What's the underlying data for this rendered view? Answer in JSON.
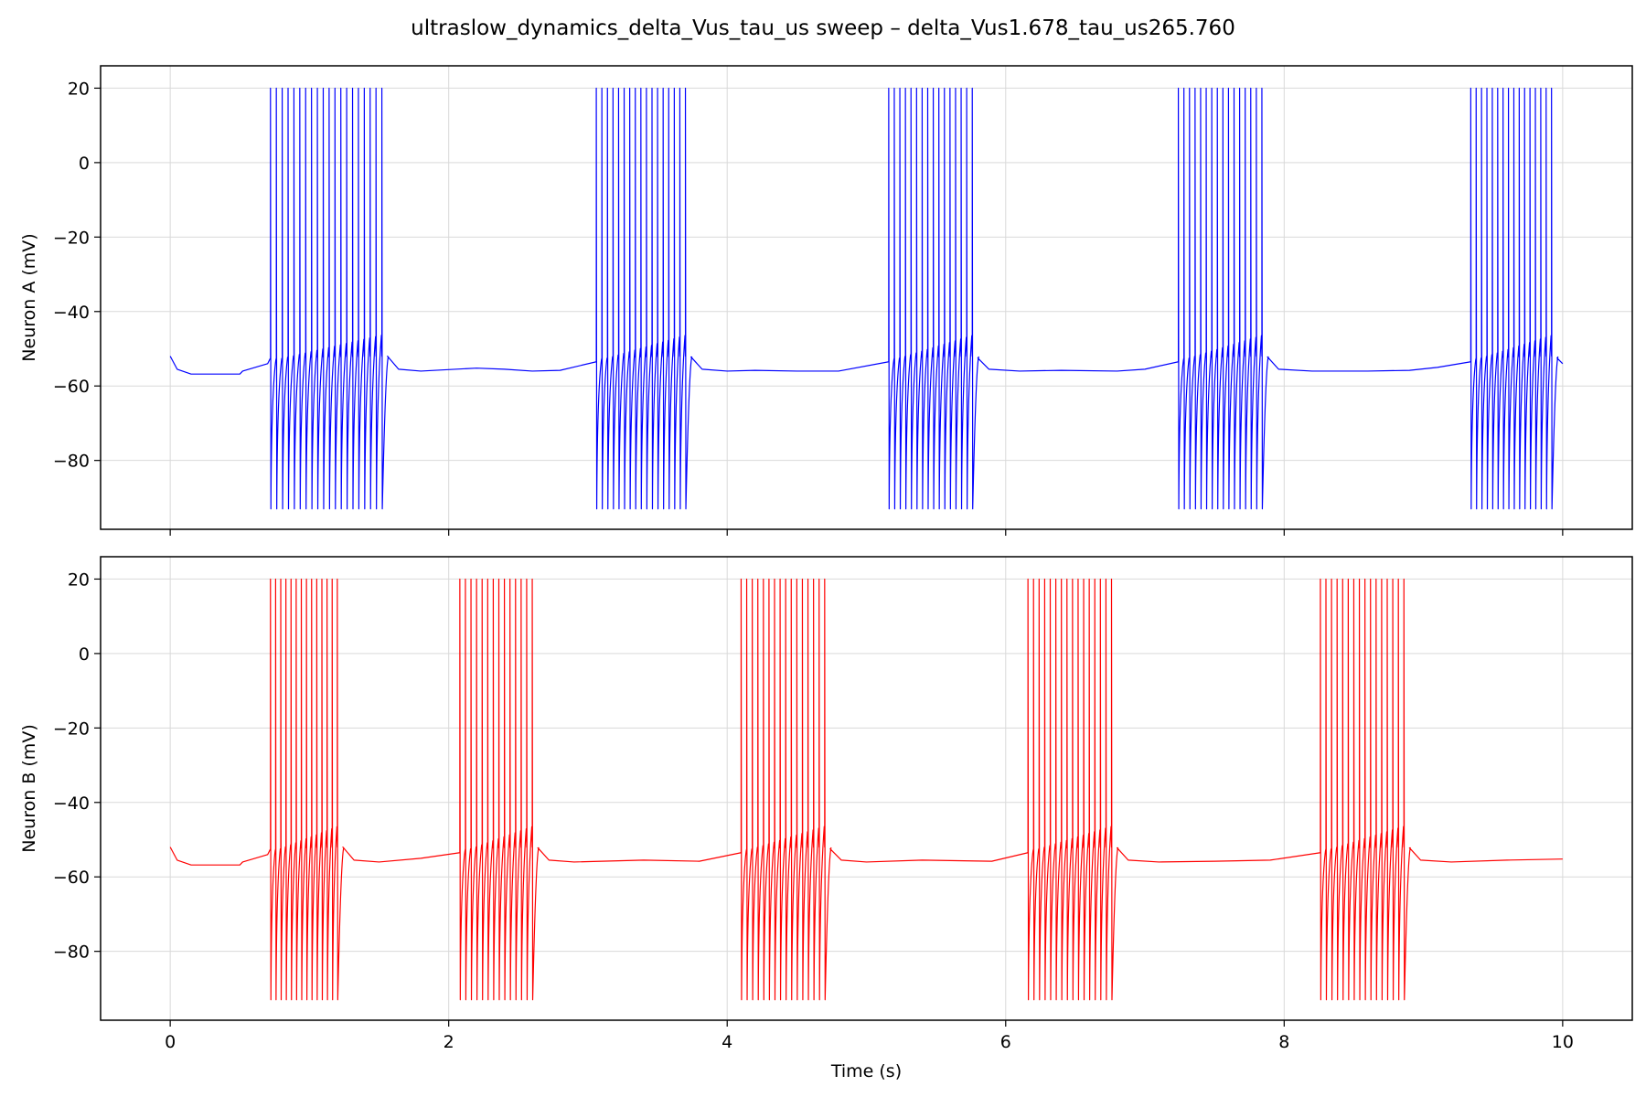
{
  "figure": {
    "title": "ultraslow_dynamics_delta_Vus_tau_us sweep – delta_Vus1.678_tau_us265.760"
  },
  "chart_data": [
    {
      "type": "line",
      "ylabel": "Neuron A (mV)",
      "xlabel": "",
      "color": "#0000ff",
      "xlim": [
        -0.5,
        10.5
      ],
      "ylim": [
        -98.5,
        26.0
      ],
      "xticks": [
        0,
        2,
        4,
        6,
        8,
        10
      ],
      "xtick_labels_shown": false,
      "yticks": [
        20,
        0,
        -20,
        -40,
        -60,
        -80
      ],
      "ytick_labels": [
        "20",
        "0",
        "−20",
        "−40",
        "−60",
        "−80"
      ],
      "grid": true,
      "spike_peak": 20,
      "spike_trough": -93,
      "bursts": [
        {
          "start": 0.72,
          "end": 1.52,
          "spikes": 20
        },
        {
          "start": 3.06,
          "end": 3.7,
          "spikes": 17
        },
        {
          "start": 5.16,
          "end": 5.76,
          "spikes": 16
        },
        {
          "start": 7.24,
          "end": 7.84,
          "spikes": 16
        },
        {
          "start": 9.34,
          "end": 9.92,
          "spikes": 16
        }
      ],
      "baseline": [
        [
          0,
          -52
        ],
        [
          0.05,
          -55.5
        ],
        [
          0.15,
          -56.8
        ],
        [
          0.5,
          -56.8
        ],
        [
          0.52,
          -56
        ],
        [
          0.7,
          -54
        ],
        [
          0.72,
          -52.5
        ],
        [
          1.56,
          -52
        ],
        [
          1.64,
          -55.5
        ],
        [
          1.8,
          -56
        ],
        [
          2.2,
          -55.2
        ],
        [
          2.4,
          -55.5
        ],
        [
          2.6,
          -56
        ],
        [
          2.8,
          -55.8
        ],
        [
          3.06,
          -53.5
        ],
        [
          3.74,
          -52.2
        ],
        [
          3.82,
          -55.5
        ],
        [
          4.0,
          -56
        ],
        [
          4.2,
          -55.8
        ],
        [
          4.5,
          -56
        ],
        [
          4.8,
          -56
        ],
        [
          5.16,
          -53.5
        ],
        [
          5.8,
          -52.5
        ],
        [
          5.88,
          -55.5
        ],
        [
          6.1,
          -56
        ],
        [
          6.4,
          -55.8
        ],
        [
          6.8,
          -56
        ],
        [
          7.0,
          -55.5
        ],
        [
          7.24,
          -53.5
        ],
        [
          7.88,
          -52.2
        ],
        [
          7.96,
          -55.5
        ],
        [
          8.2,
          -56
        ],
        [
          8.6,
          -56
        ],
        [
          8.9,
          -55.8
        ],
        [
          9.1,
          -55
        ],
        [
          9.34,
          -53.5
        ],
        [
          9.96,
          -52.5
        ],
        [
          10.0,
          -54
        ]
      ]
    },
    {
      "type": "line",
      "ylabel": "Neuron B (mV)",
      "xlabel": "Time (s)",
      "color": "#ff0000",
      "xlim": [
        -0.5,
        10.5
      ],
      "ylim": [
        -98.5,
        26.0
      ],
      "xticks": [
        0,
        2,
        4,
        6,
        8,
        10
      ],
      "xtick_labels": [
        "0",
        "2",
        "4",
        "6",
        "8",
        "10"
      ],
      "xtick_labels_shown": true,
      "yticks": [
        20,
        0,
        -20,
        -40,
        -60,
        -80
      ],
      "ytick_labels": [
        "20",
        "0",
        "−20",
        "−40",
        "−60",
        "−80"
      ],
      "grid": true,
      "spike_peak": 20,
      "spike_trough": -93,
      "bursts": [
        {
          "start": 0.72,
          "end": 1.2,
          "spikes": 14
        },
        {
          "start": 2.08,
          "end": 2.6,
          "spikes": 14
        },
        {
          "start": 4.1,
          "end": 4.7,
          "spikes": 16
        },
        {
          "start": 6.16,
          "end": 6.76,
          "spikes": 16
        },
        {
          "start": 8.26,
          "end": 8.86,
          "spikes": 16
        }
      ],
      "baseline": [
        [
          0,
          -52
        ],
        [
          0.05,
          -55.5
        ],
        [
          0.15,
          -56.8
        ],
        [
          0.5,
          -56.8
        ],
        [
          0.52,
          -56
        ],
        [
          0.7,
          -54
        ],
        [
          0.72,
          -52.5
        ],
        [
          1.24,
          -52
        ],
        [
          1.32,
          -55.5
        ],
        [
          1.5,
          -56
        ],
        [
          1.8,
          -55
        ],
        [
          2.08,
          -53.5
        ],
        [
          2.64,
          -52.2
        ],
        [
          2.72,
          -55.5
        ],
        [
          2.9,
          -56
        ],
        [
          3.4,
          -55.5
        ],
        [
          3.8,
          -55.8
        ],
        [
          4.1,
          -53.5
        ],
        [
          4.74,
          -52.5
        ],
        [
          4.82,
          -55.5
        ],
        [
          5.0,
          -56
        ],
        [
          5.4,
          -55.5
        ],
        [
          5.9,
          -55.8
        ],
        [
          6.16,
          -53.5
        ],
        [
          6.8,
          -52.2
        ],
        [
          6.88,
          -55.5
        ],
        [
          7.1,
          -56
        ],
        [
          7.5,
          -55.8
        ],
        [
          7.9,
          -55.5
        ],
        [
          8.26,
          -53.5
        ],
        [
          8.9,
          -52.2
        ],
        [
          8.98,
          -55.5
        ],
        [
          9.2,
          -56
        ],
        [
          9.6,
          -55.5
        ],
        [
          10.0,
          -55.2
        ]
      ]
    }
  ]
}
